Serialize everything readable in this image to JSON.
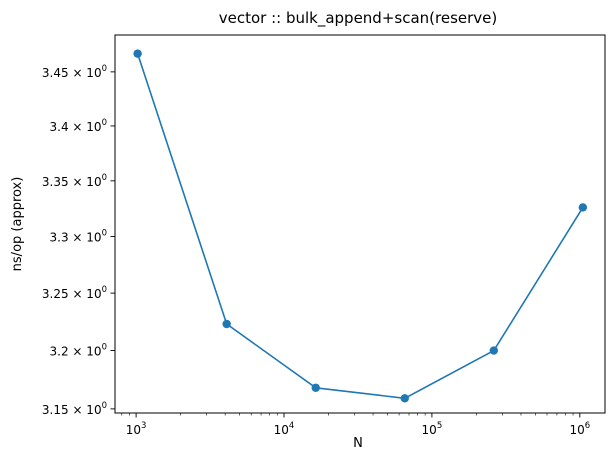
{
  "chart_data": {
    "type": "line",
    "title": "vector :: bulk_append+scan(reserve)",
    "xlabel": "N",
    "ylabel": "ns/op (approx)",
    "x_scale": "log",
    "y_scale": "log",
    "xlim": [
      720,
      1480000
    ],
    "ylim": [
      3.1465,
      3.4845
    ],
    "grid": false,
    "color": "#1f77b4",
    "x_ticks": [
      {
        "value": 1000,
        "base": "10",
        "exp": "3"
      },
      {
        "value": 10000,
        "base": "10",
        "exp": "4"
      },
      {
        "value": 100000,
        "base": "10",
        "exp": "5"
      },
      {
        "value": 1000000,
        "base": "10",
        "exp": "6"
      }
    ],
    "y_ticks": [
      {
        "value": 3.15,
        "mant": "3.15 × 10",
        "exp": "0"
      },
      {
        "value": 3.2,
        "mant": "3.2 × 10",
        "exp": "0"
      },
      {
        "value": 3.25,
        "mant": "3.25 × 10",
        "exp": "0"
      },
      {
        "value": 3.3,
        "mant": "3.3 × 10",
        "exp": "0"
      },
      {
        "value": 3.35,
        "mant": "3.35 × 10",
        "exp": "0"
      },
      {
        "value": 3.4,
        "mant": "3.4 × 10",
        "exp": "0"
      },
      {
        "value": 3.45,
        "mant": "3.45 × 10",
        "exp": "0"
      }
    ],
    "series": [
      {
        "x": [
          1024,
          4096,
          16384,
          65536,
          262144,
          1048576
        ],
        "y": [
          3.467,
          3.223,
          3.168,
          3.159,
          3.2,
          3.326
        ]
      }
    ]
  }
}
